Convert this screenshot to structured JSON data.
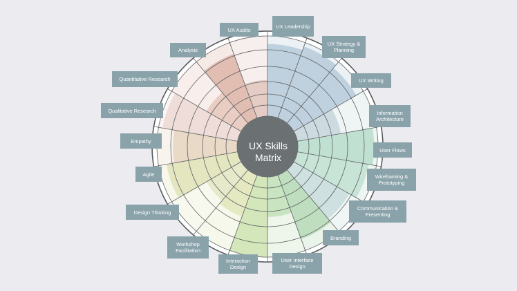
{
  "center": {
    "line1": "UX  Skills",
    "line2": "Matrix"
  },
  "skills": [
    {
      "id": "ux-audits",
      "label": "UX Audits",
      "color": "#b7cbd9",
      "level": 0.9
    },
    {
      "id": "ux-leadership",
      "label": "UX Leadership",
      "color": "#b7cbd9",
      "level": 0.95
    },
    {
      "id": "ux-strategy-planning",
      "label": "UX Strategy & Planning",
      "color": "#b7cbd9",
      "level": 0.9
    },
    {
      "id": "ux-writing",
      "label": "UX Writing",
      "color": "#c7d6dc",
      "level": 0.55
    },
    {
      "id": "information-architecture",
      "label": "Information Architecture",
      "color": "#b9dccd",
      "level": 0.95
    },
    {
      "id": "user-flows",
      "label": "User Flows",
      "color": "#bfe0d2",
      "level": 0.9
    },
    {
      "id": "wireframing-prototyping",
      "label": "Wireframing & Prototyping",
      "color": "#c9dcdc",
      "level": 0.8
    },
    {
      "id": "communication-presenting",
      "label": "Communication & Presenting",
      "color": "#b7d9b7",
      "level": 0.85
    },
    {
      "id": "branding",
      "label": "Branding",
      "color": "#c2e0b9",
      "level": 0.5
    },
    {
      "id": "user-interface-design",
      "label": "User Interface Design",
      "color": "#cfe4b3",
      "level": 1.0
    },
    {
      "id": "interaction-design",
      "label": "Interaction Design",
      "color": "#e2e6bb",
      "level": 0.55
    },
    {
      "id": "workshop-facilitation",
      "label": "Workshop Facilitation",
      "color": "#e4e7c3",
      "level": 0.5
    },
    {
      "id": "design-thinking",
      "label": "Design Thinking",
      "color": "#e1e3b9",
      "level": 0.9
    },
    {
      "id": "agile",
      "label": "Agile",
      "color": "#e6d3bf",
      "level": 0.8
    },
    {
      "id": "empathy",
      "label": "Empathy",
      "color": "#ecd8d4",
      "level": 0.95
    },
    {
      "id": "qualitative-research",
      "label": "Qualitative Research",
      "color": "#e6c7bc",
      "level": 0.5
    },
    {
      "id": "quantitative-research",
      "label": "Quantitative Research",
      "color": "#ddb5a8",
      "level": 0.85
    },
    {
      "id": "analysis",
      "label": "Analysis",
      "color": "#e2c6bd",
      "level": 0.45
    }
  ]
}
